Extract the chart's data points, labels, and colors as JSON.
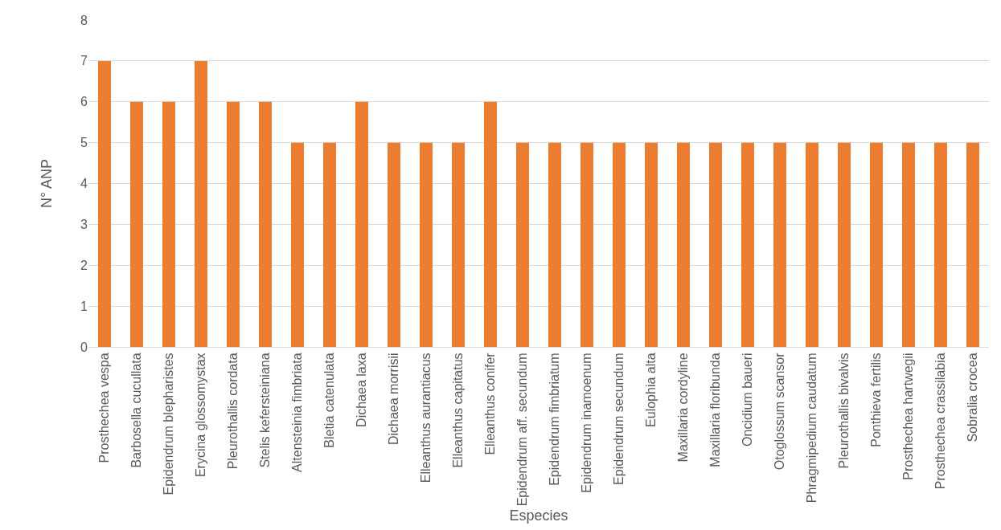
{
  "chart_data": {
    "type": "bar",
    "xlabel": "Especies",
    "ylabel": "N° ANP",
    "categories": [
      "Prosthechea vespa",
      "Barbosella cucullata",
      "Epidendrum blepharistes",
      "Erycina glossomystax",
      "Pleurothallis cordata",
      "Stelis kefersteiniana",
      "Altensteinia fimbriata",
      "Bletia catenulata",
      "Dichaea laxa",
      "Dichaea morrisii",
      "Elleanthus aurantiacus",
      "Elleanthus capitatus",
      "Elleanthus conifer",
      "Epidendrum aff. secundum",
      "Epidendrum fimbriatum",
      "Epidendrum inamoenum",
      "Epidendrum secundum",
      "Eulophia alta",
      "Maxillaria cordyline",
      "Maxillaria floribunda",
      "Oncidium baueri",
      "Otoglossum scansor",
      "Phragmipedium caudatum",
      "Pleurothallis bivalvis",
      "Ponthieva fertilis",
      "Prosthechea hartwegii",
      "Prosthechea crassilabia",
      "Sobralia crocea"
    ],
    "values": [
      7,
      6,
      6,
      7,
      6,
      6,
      5,
      5,
      6,
      5,
      5,
      5,
      6,
      5,
      5,
      5,
      5,
      5,
      5,
      5,
      5,
      5,
      5,
      5,
      5,
      5,
      5,
      5
    ],
    "color": "#ed7d31",
    "ylim": [
      0,
      8
    ],
    "yticks": [
      0,
      1,
      2,
      3,
      4,
      5,
      6,
      7,
      8
    ],
    "grid": "y"
  }
}
